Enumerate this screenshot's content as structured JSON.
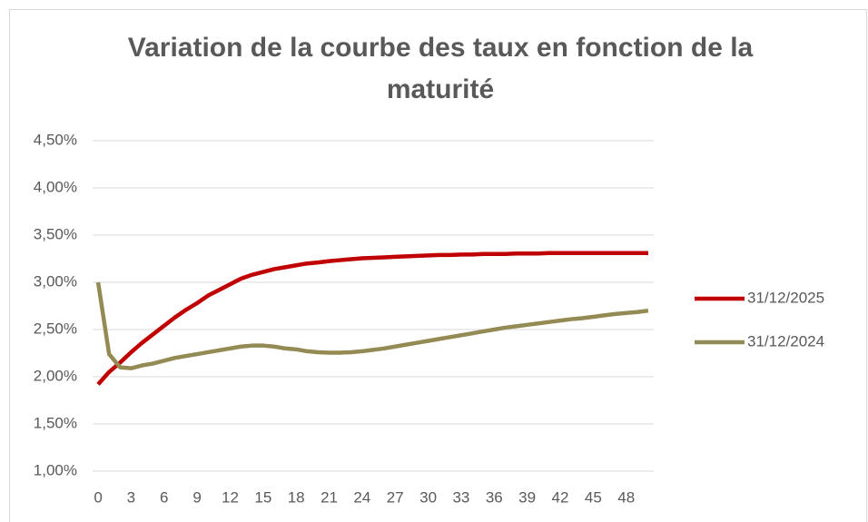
{
  "chart_data": {
    "type": "line",
    "title": "Variation de la courbe des taux en fonction de la maturité",
    "x": [
      0,
      1,
      2,
      3,
      4,
      5,
      6,
      7,
      8,
      9,
      10,
      11,
      12,
      13,
      14,
      15,
      16,
      17,
      18,
      19,
      20,
      21,
      22,
      23,
      24,
      25,
      26,
      27,
      28,
      29,
      30,
      31,
      32,
      33,
      34,
      35,
      36,
      37,
      38,
      39,
      40,
      41,
      42,
      43,
      44,
      45,
      46,
      47,
      48,
      49,
      50
    ],
    "xlim": [
      -0.5,
      50.5
    ],
    "xticks": [
      0,
      3,
      6,
      9,
      12,
      15,
      18,
      21,
      24,
      27,
      30,
      33,
      36,
      39,
      42,
      45,
      48
    ],
    "ylim": [
      1.0,
      4.5
    ],
    "yticks": [
      {
        "value": 1.0,
        "label": "1,00%"
      },
      {
        "value": 1.5,
        "label": "1,50%"
      },
      {
        "value": 2.0,
        "label": "2,00%"
      },
      {
        "value": 2.5,
        "label": "2,50%"
      },
      {
        "value": 3.0,
        "label": "3,00%"
      },
      {
        "value": 3.5,
        "label": "3,50%"
      },
      {
        "value": 4.0,
        "label": "4,00%"
      },
      {
        "value": 4.5,
        "label": "4,50%"
      }
    ],
    "grid": true,
    "legend": "right",
    "series": [
      {
        "name": "31/12/2025",
        "color": "#c00000",
        "values": [
          1.92,
          2.05,
          2.15,
          2.26,
          2.36,
          2.45,
          2.54,
          2.63,
          2.71,
          2.78,
          2.86,
          2.92,
          2.98,
          3.04,
          3.08,
          3.11,
          3.14,
          3.16,
          3.18,
          3.2,
          3.21,
          3.225,
          3.235,
          3.245,
          3.255,
          3.26,
          3.265,
          3.27,
          3.275,
          3.28,
          3.285,
          3.29,
          3.29,
          3.295,
          3.295,
          3.3,
          3.3,
          3.3,
          3.305,
          3.305,
          3.305,
          3.31,
          3.31,
          3.31,
          3.31,
          3.31,
          3.31,
          3.31,
          3.31,
          3.31,
          3.31
        ]
      },
      {
        "name": "31/12/2024",
        "color": "#948a54",
        "values": [
          3.0,
          2.24,
          2.1,
          2.09,
          2.12,
          2.14,
          2.17,
          2.2,
          2.22,
          2.24,
          2.26,
          2.28,
          2.3,
          2.32,
          2.33,
          2.33,
          2.32,
          2.3,
          2.29,
          2.27,
          2.26,
          2.255,
          2.255,
          2.26,
          2.27,
          2.285,
          2.3,
          2.32,
          2.34,
          2.36,
          2.38,
          2.4,
          2.42,
          2.44,
          2.46,
          2.48,
          2.5,
          2.52,
          2.535,
          2.55,
          2.565,
          2.58,
          2.595,
          2.61,
          2.62,
          2.635,
          2.65,
          2.665,
          2.675,
          2.685,
          2.7
        ]
      }
    ]
  }
}
